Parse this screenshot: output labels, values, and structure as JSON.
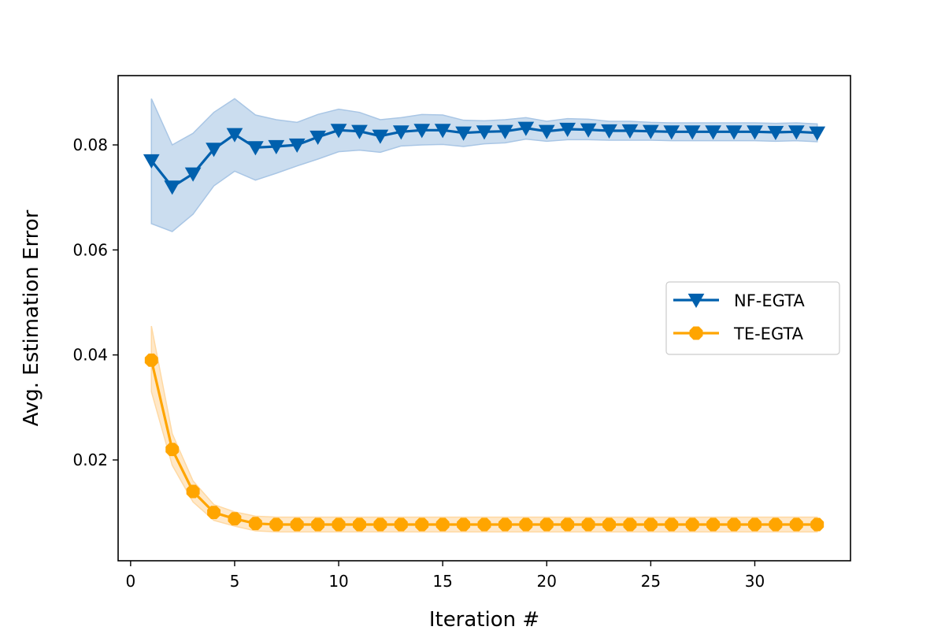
{
  "chart_data": {
    "type": "line",
    "title": "",
    "xlabel": "Iteration #",
    "ylabel": "Avg. Estimation Error",
    "xlim": [
      -0.6,
      34.6
    ],
    "ylim": [
      0.0008,
      0.0932
    ],
    "xticks": [
      0,
      5,
      10,
      15,
      20,
      25,
      30
    ],
    "xtick_labels": [
      "0",
      "5",
      "10",
      "15",
      "20",
      "25",
      "30"
    ],
    "yticks": [
      0.02,
      0.04,
      0.06,
      0.08
    ],
    "ytick_labels": [
      "0.02",
      "0.04",
      "0.06",
      "0.08"
    ],
    "grid": false,
    "legend_position": "center-right",
    "x": [
      1,
      2,
      3,
      4,
      5,
      6,
      7,
      8,
      9,
      10,
      11,
      12,
      13,
      14,
      15,
      16,
      17,
      18,
      19,
      20,
      21,
      22,
      23,
      24,
      25,
      26,
      27,
      28,
      29,
      30,
      31,
      32,
      33
    ],
    "series": [
      {
        "name": "NF-EGTA",
        "color": "#0060ad",
        "band_color": "#a9c6e5",
        "marker": "triangle-down",
        "values": [
          0.077,
          0.072,
          0.0745,
          0.0792,
          0.082,
          0.0795,
          0.0797,
          0.08,
          0.0815,
          0.0828,
          0.0826,
          0.0817,
          0.0825,
          0.0828,
          0.0828,
          0.0823,
          0.0825,
          0.0826,
          0.0832,
          0.0826,
          0.083,
          0.0829,
          0.0827,
          0.0827,
          0.0826,
          0.0825,
          0.0825,
          0.0825,
          0.0825,
          0.0825,
          0.0824,
          0.0825,
          0.0823
        ],
        "upper": [
          0.0888,
          0.08,
          0.0822,
          0.0862,
          0.0888,
          0.0857,
          0.0848,
          0.0843,
          0.0858,
          0.0868,
          0.0862,
          0.0848,
          0.0852,
          0.0858,
          0.0857,
          0.0847,
          0.0846,
          0.0848,
          0.0852,
          0.0845,
          0.085,
          0.0849,
          0.0845,
          0.0845,
          0.0843,
          0.0842,
          0.0842,
          0.0842,
          0.0842,
          0.0842,
          0.0841,
          0.0842,
          0.084
        ],
        "lower": [
          0.065,
          0.0635,
          0.0668,
          0.0722,
          0.075,
          0.0733,
          0.0746,
          0.076,
          0.0773,
          0.0787,
          0.079,
          0.0786,
          0.0798,
          0.08,
          0.0801,
          0.0797,
          0.0802,
          0.0804,
          0.0811,
          0.0807,
          0.081,
          0.081,
          0.0809,
          0.0809,
          0.0809,
          0.0808,
          0.0808,
          0.0808,
          0.0808,
          0.0808,
          0.0807,
          0.0808,
          0.0806
        ]
      },
      {
        "name": "TE-EGTA",
        "color": "#ffa500",
        "band_color": "#ffd9a3",
        "marker": "octagon",
        "values": [
          0.039,
          0.022,
          0.014,
          0.01,
          0.0088,
          0.0079,
          0.0077,
          0.0077,
          0.0077,
          0.0077,
          0.0077,
          0.0077,
          0.0077,
          0.0077,
          0.0077,
          0.0077,
          0.0077,
          0.0077,
          0.0077,
          0.0077,
          0.0077,
          0.0077,
          0.0077,
          0.0077,
          0.0077,
          0.0077,
          0.0077,
          0.0077,
          0.0077,
          0.0077,
          0.0077,
          0.0077,
          0.0077
        ],
        "upper": [
          0.0455,
          0.025,
          0.016,
          0.0115,
          0.0101,
          0.0093,
          0.0091,
          0.0091,
          0.0091,
          0.0091,
          0.0091,
          0.0091,
          0.0091,
          0.0091,
          0.0091,
          0.0091,
          0.0091,
          0.0091,
          0.0091,
          0.0091,
          0.0091,
          0.0091,
          0.0091,
          0.0091,
          0.0091,
          0.0091,
          0.0091,
          0.0091,
          0.0091,
          0.0091,
          0.0091,
          0.0091,
          0.0091
        ],
        "lower": [
          0.033,
          0.019,
          0.012,
          0.0085,
          0.0074,
          0.0065,
          0.0063,
          0.0063,
          0.0063,
          0.0063,
          0.0063,
          0.0063,
          0.0063,
          0.0063,
          0.0063,
          0.0063,
          0.0063,
          0.0063,
          0.0063,
          0.0063,
          0.0063,
          0.0063,
          0.0063,
          0.0063,
          0.0063,
          0.0063,
          0.0063,
          0.0063,
          0.0063,
          0.0063,
          0.0063,
          0.0063,
          0.0063
        ]
      }
    ]
  }
}
